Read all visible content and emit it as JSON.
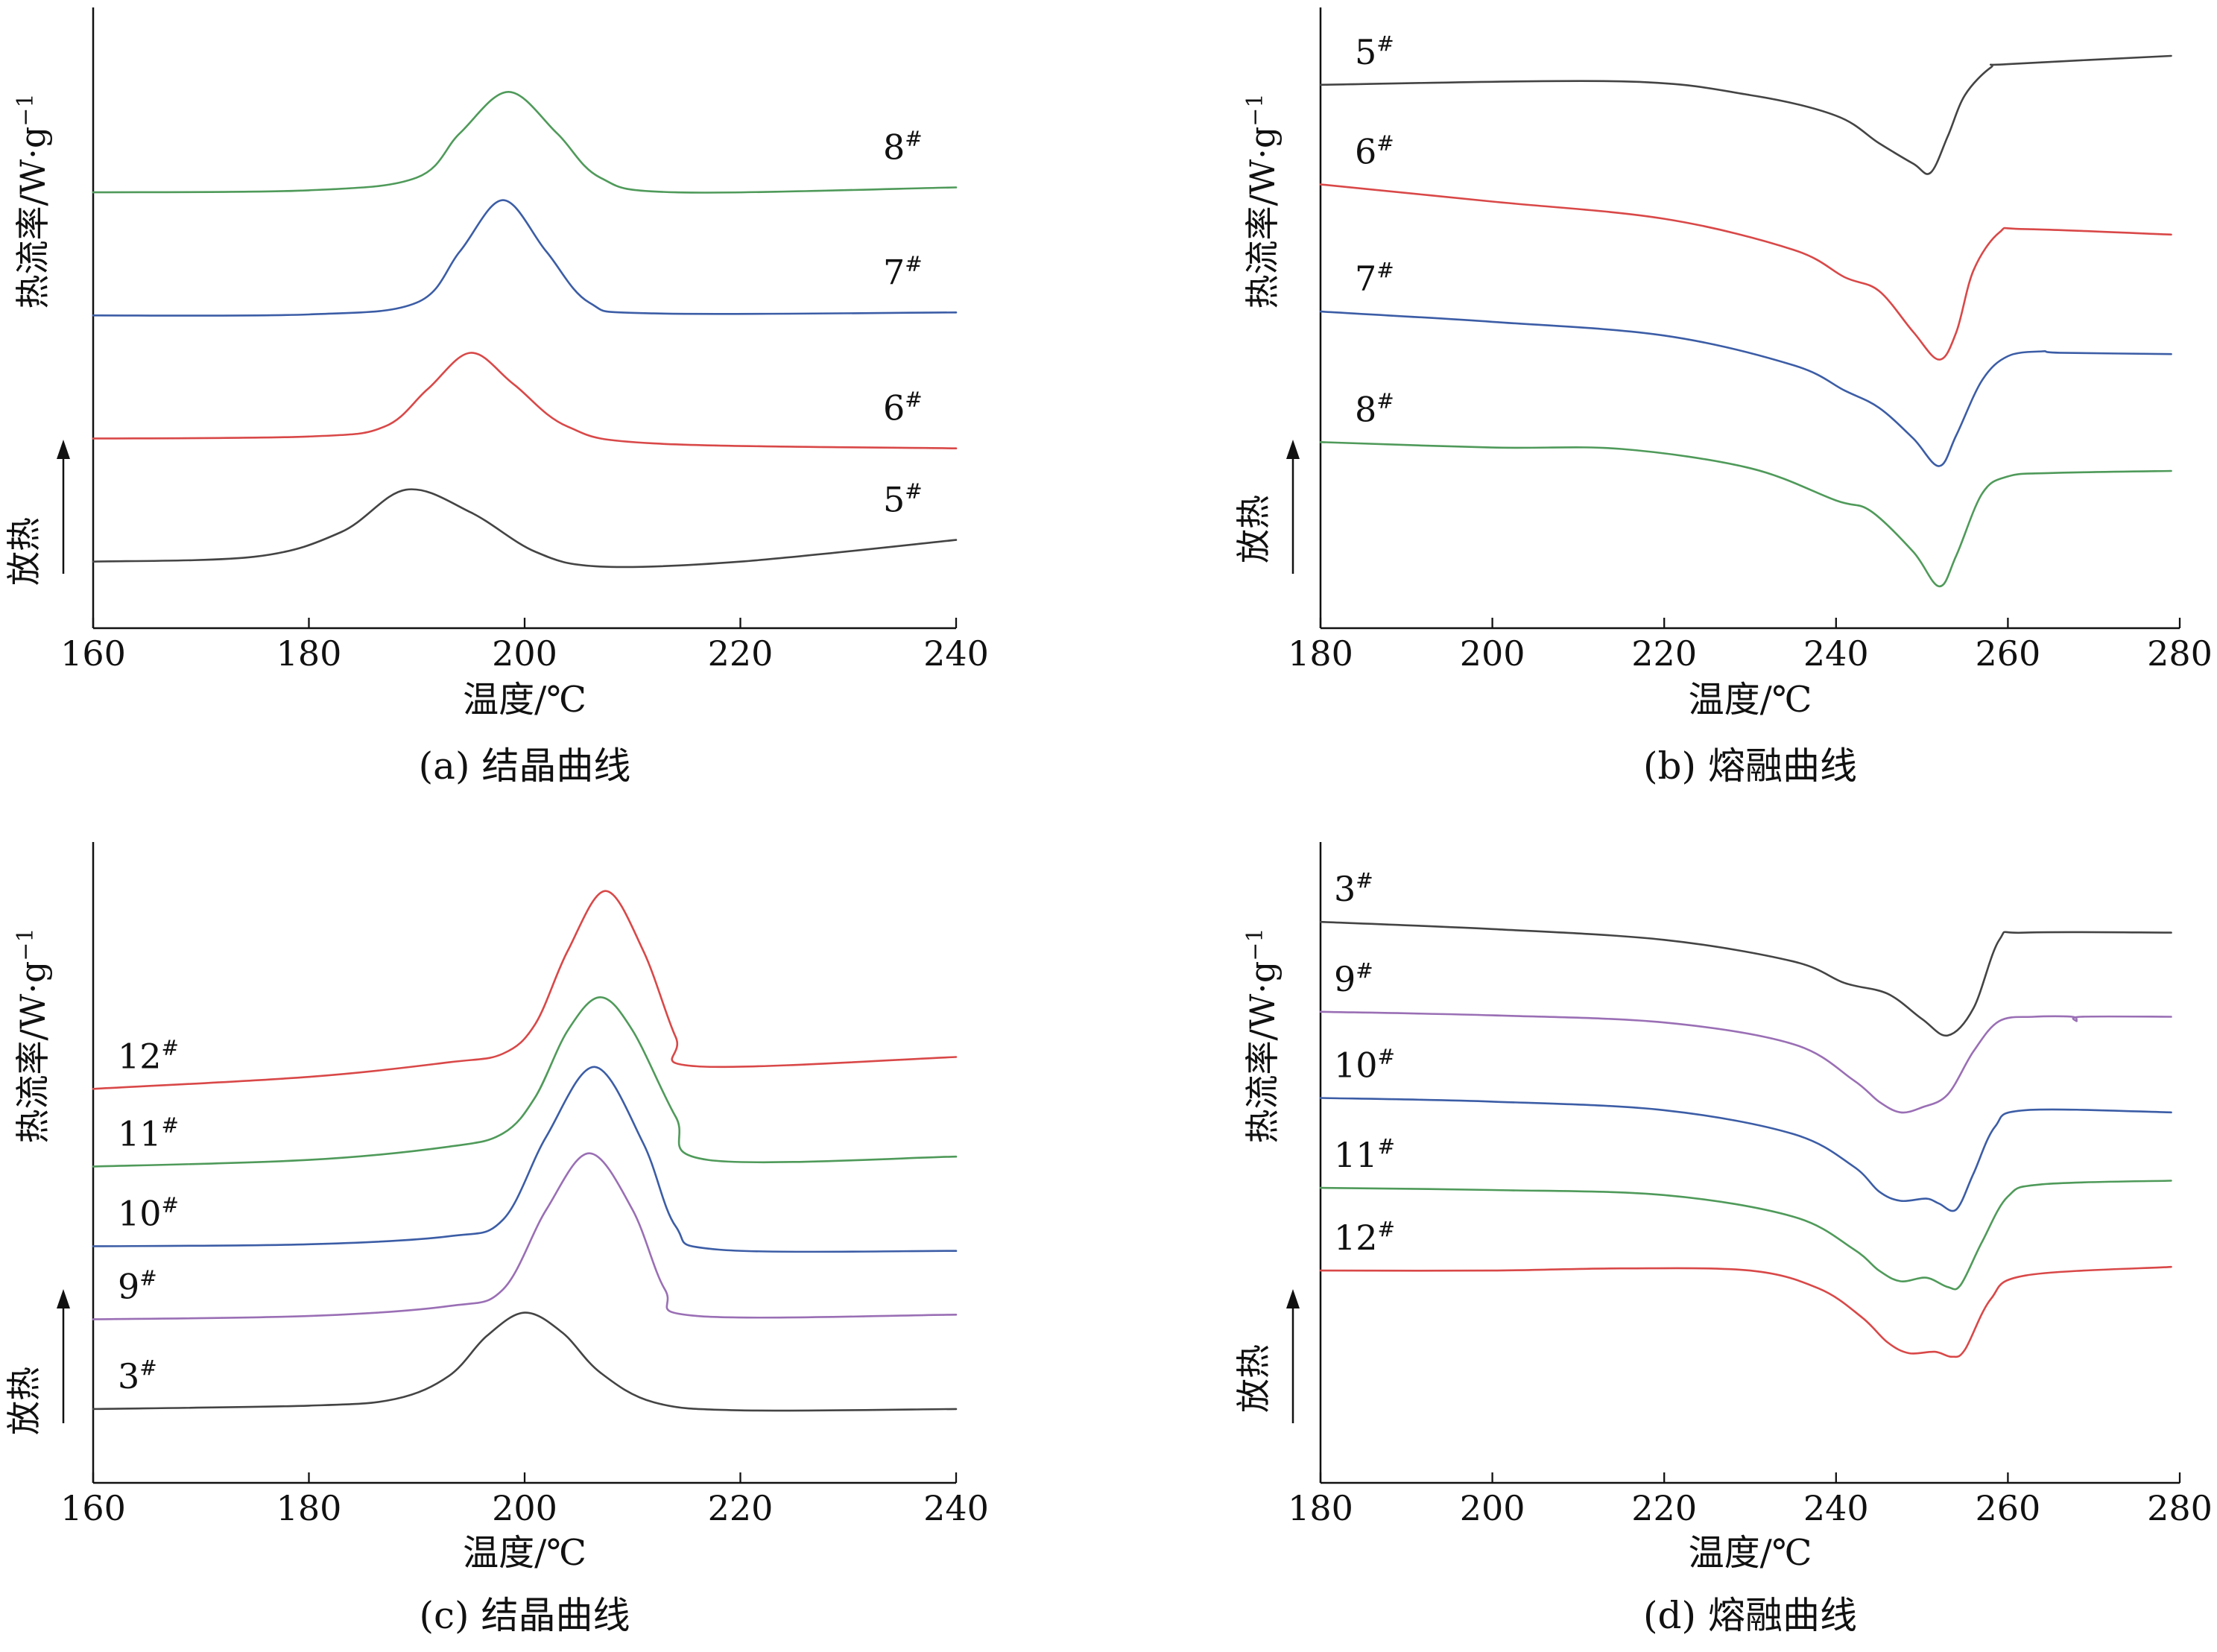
{
  "chart_data": [
    {
      "type": "line",
      "caption": "(a) 结晶曲线",
      "xlabel": "温度/℃",
      "ylabel": "热流率/W·g",
      "ylabel_sup": "−1",
      "exo_label": "放热",
      "xlim": [
        160,
        240
      ],
      "x_ticks": [
        "160",
        "180",
        "200",
        "220",
        "240"
      ],
      "y_ticks": [],
      "grid": false,
      "series": [
        {
          "name": "8",
          "suffix": "#",
          "color": "#4f9a5a",
          "points": [
            [
              160,
              4.1
            ],
            [
              180,
              4.12
            ],
            [
              190,
              4.25
            ],
            [
              194,
              4.7
            ],
            [
              198.5,
              5.12
            ],
            [
              203,
              4.7
            ],
            [
              207,
              4.25
            ],
            [
              214,
              4.1
            ],
            [
              240,
              4.15
            ]
          ]
        },
        {
          "name": "7",
          "suffix": "#",
          "color": "#3c5da6",
          "points": [
            [
              160,
              2.85
            ],
            [
              180,
              2.86
            ],
            [
              190,
              2.98
            ],
            [
              194,
              3.5
            ],
            [
              198,
              4.02
            ],
            [
              202,
              3.5
            ],
            [
              206,
              2.98
            ],
            [
              212,
              2.87
            ],
            [
              240,
              2.88
            ]
          ]
        },
        {
          "name": "6",
          "suffix": "#",
          "color": "#d94848",
          "points": [
            [
              160,
              1.6
            ],
            [
              180,
              1.62
            ],
            [
              187,
              1.72
            ],
            [
              191,
              2.1
            ],
            [
              195,
              2.47
            ],
            [
              199,
              2.15
            ],
            [
              204,
              1.72
            ],
            [
              212,
              1.55
            ],
            [
              240,
              1.5
            ]
          ]
        },
        {
          "name": "5",
          "suffix": "#",
          "color": "#444444",
          "points": [
            [
              160,
              0.35
            ],
            [
              175,
              0.4
            ],
            [
              183,
              0.65
            ],
            [
              189,
              1.08
            ],
            [
              195,
              0.85
            ],
            [
              201,
              0.45
            ],
            [
              207,
              0.3
            ],
            [
              220,
              0.35
            ],
            [
              240,
              0.57
            ]
          ]
        }
      ]
    },
    {
      "type": "line",
      "caption": "(b) 熔融曲线",
      "xlabel": "温度/℃",
      "ylabel": "热流率/W·g",
      "ylabel_sup": "−1",
      "exo_label": "放热",
      "xlim": [
        180,
        280
      ],
      "x_ticks": [
        "180",
        "200",
        "220",
        "240",
        "260",
        "280"
      ],
      "y_ticks": [],
      "grid": false,
      "series": [
        {
          "name": "5",
          "suffix": "#",
          "color": "#444444",
          "points": [
            [
              180,
              6.0
            ],
            [
              215,
              6.05
            ],
            [
              230,
              5.85
            ],
            [
              240,
              5.55
            ],
            [
              245,
              5.15
            ],
            [
              249,
              4.85
            ],
            [
              251,
              4.72
            ],
            [
              253,
              5.25
            ],
            [
              255,
              5.85
            ],
            [
              258,
              6.25
            ],
            [
              260,
              6.3
            ],
            [
              279,
              6.42
            ]
          ]
        },
        {
          "name": "6",
          "suffix": "#",
          "color": "#d94848",
          "points": [
            [
              180,
              4.55
            ],
            [
              200,
              4.3
            ],
            [
              220,
              4.05
            ],
            [
              235,
              3.6
            ],
            [
              241,
              3.2
            ],
            [
              245,
              3.0
            ],
            [
              249,
              2.4
            ],
            [
              252,
              2.0
            ],
            [
              254,
              2.4
            ],
            [
              256,
              3.3
            ],
            [
              259,
              3.85
            ],
            [
              262,
              3.9
            ],
            [
              279,
              3.82
            ]
          ]
        },
        {
          "name": "7",
          "suffix": "#",
          "color": "#3c5da6",
          "points": [
            [
              180,
              2.7
            ],
            [
              200,
              2.55
            ],
            [
              220,
              2.35
            ],
            [
              235,
              1.92
            ],
            [
              241,
              1.55
            ],
            [
              245,
              1.3
            ],
            [
              249,
              0.85
            ],
            [
              252,
              0.45
            ],
            [
              254,
              0.9
            ],
            [
              257,
              1.7
            ],
            [
              260,
              2.05
            ],
            [
              264,
              2.12
            ],
            [
              266,
              2.1
            ],
            [
              279,
              2.08
            ]
          ]
        },
        {
          "name": "8",
          "suffix": "#",
          "color": "#4f9a5a",
          "points": [
            [
              180,
              0.8
            ],
            [
              200,
              0.72
            ],
            [
              215,
              0.7
            ],
            [
              230,
              0.42
            ],
            [
              240,
              -0.05
            ],
            [
              244,
              -0.2
            ],
            [
              249,
              -0.8
            ],
            [
              252,
              -1.3
            ],
            [
              254,
              -0.85
            ],
            [
              257,
              0.05
            ],
            [
              260,
              0.3
            ],
            [
              265,
              0.35
            ],
            [
              279,
              0.38
            ]
          ]
        }
      ]
    },
    {
      "type": "line",
      "caption": "(c) 结晶曲线",
      "xlabel": "温度/℃",
      "ylabel": "热流率/W·g",
      "ylabel_sup": "−1",
      "exo_label": "放热",
      "xlim": [
        160,
        240
      ],
      "x_ticks": [
        "160",
        "180",
        "200",
        "220",
        "240"
      ],
      "y_ticks": [],
      "grid": false,
      "series": [
        {
          "name": "12",
          "suffix": "#",
          "color": "#d94848",
          "points": [
            [
              160,
              5.62
            ],
            [
              180,
              5.8
            ],
            [
              193,
              6.02
            ],
            [
              198,
              6.15
            ],
            [
              201,
              6.6
            ],
            [
              204,
              7.7
            ],
            [
              207.5,
              8.6
            ],
            [
              211,
              7.7
            ],
            [
              214,
              6.4
            ],
            [
              216,
              5.96
            ],
            [
              240,
              6.1
            ]
          ]
        },
        {
          "name": "11",
          "suffix": "#",
          "color": "#4f9a5a",
          "points": [
            [
              160,
              4.45
            ],
            [
              180,
              4.55
            ],
            [
              193,
              4.75
            ],
            [
              198,
              4.95
            ],
            [
              201,
              5.5
            ],
            [
              204,
              6.5
            ],
            [
              207,
              7.0
            ],
            [
              210,
              6.5
            ],
            [
              214,
              5.2
            ],
            [
              217,
              4.55
            ],
            [
              240,
              4.6
            ]
          ]
        },
        {
          "name": "10",
          "suffix": "#",
          "color": "#3c5da6",
          "points": [
            [
              160,
              3.25
            ],
            [
              180,
              3.28
            ],
            [
              193,
              3.4
            ],
            [
              198,
              3.65
            ],
            [
              202,
              4.9
            ],
            [
              206.5,
              5.95
            ],
            [
              211,
              4.8
            ],
            [
              214,
              3.55
            ],
            [
              218,
              3.2
            ],
            [
              240,
              3.18
            ]
          ]
        },
        {
          "name": "9",
          "suffix": "#",
          "color": "#9a6fb5",
          "points": [
            [
              160,
              2.15
            ],
            [
              180,
              2.2
            ],
            [
              193,
              2.35
            ],
            [
              198,
              2.6
            ],
            [
              202,
              3.8
            ],
            [
              206,
              4.65
            ],
            [
              210,
              3.8
            ],
            [
              213,
              2.6
            ],
            [
              216,
              2.2
            ],
            [
              240,
              2.22
            ]
          ]
        },
        {
          "name": "3",
          "suffix": "#",
          "color": "#444444",
          "points": [
            [
              160,
              0.8
            ],
            [
              180,
              0.85
            ],
            [
              188,
              0.95
            ],
            [
              193,
              1.3
            ],
            [
              196.5,
              1.9
            ],
            [
              200,
              2.25
            ],
            [
              203.5,
              1.95
            ],
            [
              207,
              1.35
            ],
            [
              212,
              0.9
            ],
            [
              220,
              0.78
            ],
            [
              240,
              0.8
            ]
          ]
        }
      ]
    },
    {
      "type": "line",
      "caption": "(d) 熔融曲线",
      "xlabel": "温度/℃",
      "ylabel": "热流率/W·g",
      "ylabel_sup": "−1",
      "exo_label": "放热",
      "xlim": [
        180,
        280
      ],
      "x_ticks": [
        "180",
        "200",
        "220",
        "240",
        "260",
        "280"
      ],
      "y_ticks": [],
      "grid": false,
      "series": [
        {
          "name": "3",
          "suffix": "#",
          "color": "#444444",
          "points": [
            [
              180,
              7.2
            ],
            [
              200,
              7.1
            ],
            [
              220,
              6.95
            ],
            [
              235,
              6.65
            ],
            [
              241,
              6.35
            ],
            [
              246,
              6.2
            ],
            [
              250,
              5.85
            ],
            [
              253,
              5.62
            ],
            [
              256,
              6.0
            ],
            [
              259,
              6.95
            ],
            [
              262,
              7.05
            ],
            [
              279,
              7.05
            ]
          ]
        },
        {
          "name": "9",
          "suffix": "#",
          "color": "#9a6fb5",
          "points": [
            [
              180,
              5.95
            ],
            [
              200,
              5.9
            ],
            [
              220,
              5.8
            ],
            [
              235,
              5.5
            ],
            [
              242,
              5.0
            ],
            [
              245,
              4.7
            ],
            [
              247.5,
              4.55
            ],
            [
              250,
              4.62
            ],
            [
              253,
              4.8
            ],
            [
              256,
              5.4
            ],
            [
              259,
              5.82
            ],
            [
              263,
              5.88
            ],
            [
              267.5,
              5.88
            ],
            [
              268,
              5.82
            ],
            [
              268.5,
              5.88
            ],
            [
              279,
              5.88
            ]
          ]
        },
        {
          "name": "10",
          "suffix": "#",
          "color": "#3c5da6",
          "points": [
            [
              180,
              4.75
            ],
            [
              200,
              4.7
            ],
            [
              220,
              4.58
            ],
            [
              235,
              4.25
            ],
            [
              242,
              3.8
            ],
            [
              245,
              3.45
            ],
            [
              247.5,
              3.32
            ],
            [
              250.5,
              3.35
            ],
            [
              252,
              3.28
            ],
            [
              254,
              3.2
            ],
            [
              256,
              3.7
            ],
            [
              258.5,
              4.35
            ],
            [
              262,
              4.58
            ],
            [
              279,
              4.55
            ]
          ]
        },
        {
          "name": "11",
          "suffix": "#",
          "color": "#4f9a5a",
          "points": [
            [
              180,
              3.5
            ],
            [
              200,
              3.47
            ],
            [
              220,
              3.4
            ],
            [
              235,
              3.1
            ],
            [
              242,
              2.65
            ],
            [
              245,
              2.35
            ],
            [
              247.5,
              2.2
            ],
            [
              250.5,
              2.25
            ],
            [
              253,
              2.12
            ],
            [
              254.5,
              2.15
            ],
            [
              257,
              2.75
            ],
            [
              260,
              3.38
            ],
            [
              264,
              3.55
            ],
            [
              279,
              3.6
            ]
          ]
        },
        {
          "name": "12",
          "suffix": "#",
          "color": "#d94848",
          "points": [
            [
              180,
              2.35
            ],
            [
              200,
              2.35
            ],
            [
              215,
              2.38
            ],
            [
              230,
              2.35
            ],
            [
              238,
              2.1
            ],
            [
              243,
              1.7
            ],
            [
              246,
              1.35
            ],
            [
              248.5,
              1.2
            ],
            [
              251.5,
              1.22
            ],
            [
              253.5,
              1.15
            ],
            [
              255,
              1.25
            ],
            [
              258,
              1.95
            ],
            [
              262,
              2.28
            ],
            [
              279,
              2.4
            ]
          ]
        }
      ]
    }
  ]
}
